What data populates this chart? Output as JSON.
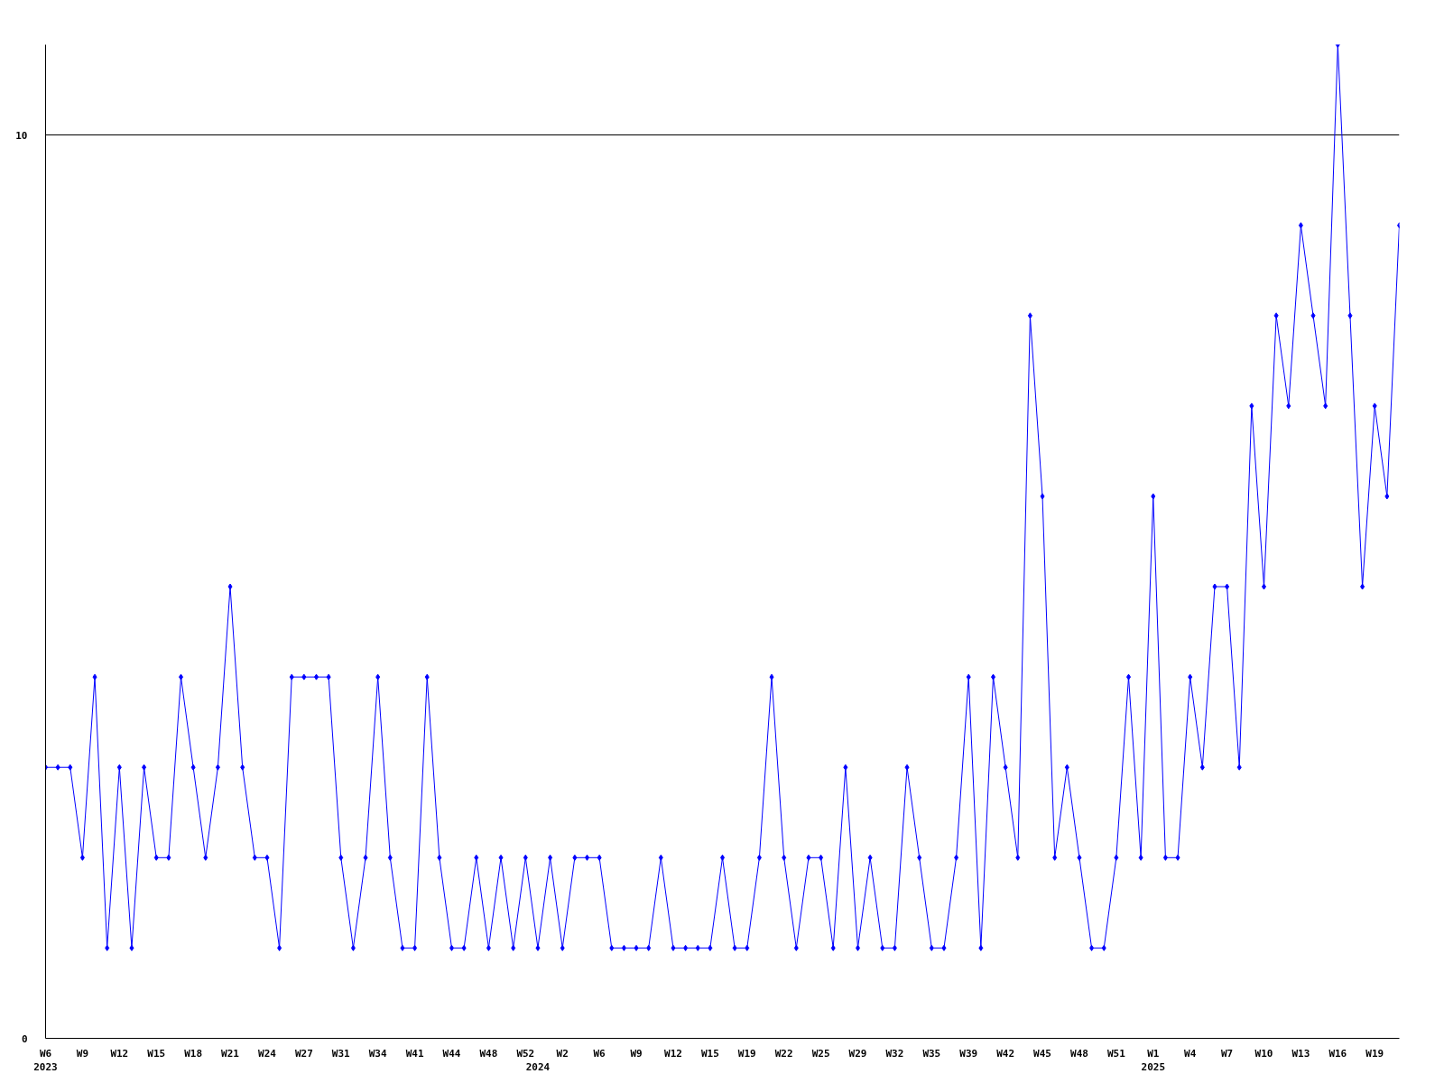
{
  "chart_data": {
    "type": "line",
    "categories": [
      "W6\n2023",
      null,
      null,
      "W9",
      null,
      null,
      "W12",
      null,
      null,
      "W15",
      null,
      null,
      "W18",
      null,
      null,
      "W21",
      null,
      null,
      "W24",
      null,
      null,
      "W27",
      null,
      null,
      "W31",
      null,
      null,
      "W34",
      null,
      null,
      "W41",
      null,
      null,
      "W44",
      null,
      null,
      "W48",
      null,
      null,
      "W52",
      "\n2024",
      null,
      "W2",
      null,
      null,
      "W6",
      null,
      null,
      "W9",
      null,
      null,
      "W12",
      null,
      null,
      "W15",
      null,
      null,
      "W19",
      null,
      null,
      "W22",
      null,
      null,
      "W25",
      null,
      null,
      "W29",
      null,
      null,
      "W32",
      null,
      null,
      "W35",
      null,
      null,
      "W39",
      null,
      null,
      "W42",
      null,
      null,
      "W45",
      null,
      null,
      "W48",
      null,
      null,
      "W51",
      null,
      null,
      "W1\n2025",
      null,
      null,
      "W4",
      null,
      null,
      "W7",
      null,
      null,
      "W10",
      null,
      null,
      "W13",
      null,
      null,
      "W16",
      null,
      null,
      "W19",
      null,
      null
    ],
    "series": [
      {
        "color": "#0000ff",
        "values": [
          3,
          3,
          3,
          2,
          4,
          1,
          3,
          1,
          3,
          2,
          2,
          4,
          3,
          2,
          3,
          5,
          3,
          2,
          2,
          1,
          4,
          4,
          4,
          4,
          2,
          1,
          2,
          4,
          2,
          1,
          1,
          4,
          2,
          1,
          1,
          2,
          1,
          2,
          1,
          2,
          1,
          2,
          1,
          2,
          2,
          2,
          1,
          1,
          1,
          1,
          2,
          1,
          1,
          1,
          1,
          2,
          1,
          1,
          2,
          4,
          2,
          1,
          2,
          2,
          1,
          3,
          1,
          2,
          1,
          1,
          3,
          2,
          1,
          1,
          2,
          4,
          1,
          4,
          3,
          2,
          8,
          6,
          2,
          3,
          2,
          1,
          1,
          2,
          4,
          2,
          6,
          2,
          2,
          4,
          3,
          5,
          5,
          3,
          7,
          5,
          8,
          7,
          9,
          8,
          7,
          11,
          8,
          5,
          7,
          6,
          9
        ]
      }
    ],
    "ylim": [
      0,
      11
    ],
    "yticks": [
      0,
      10
    ],
    "grid": "y",
    "marker": "diamond",
    "line_style": "solid"
  }
}
